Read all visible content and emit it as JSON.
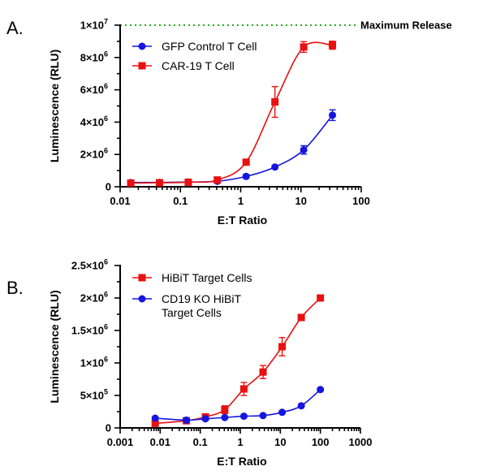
{
  "chart_data": [
    {
      "type": "scatter",
      "panel": "A.",
      "xlabel": "E:T Ratio",
      "ylabel": "Luminescence (RLU)",
      "xscale": "log",
      "xlim": [
        0.01,
        100
      ],
      "ylim": [
        0,
        10000000
      ],
      "x_ticks": [
        "0.01",
        "0.1",
        "1",
        "10",
        "100"
      ],
      "y_ticks": [
        {
          "mant": "0",
          "exp": ""
        },
        {
          "mant": "2×10",
          "exp": "6"
        },
        {
          "mant": "4×10",
          "exp": "6"
        },
        {
          "mant": "6×10",
          "exp": "6"
        },
        {
          "mant": "8×10",
          "exp": "6"
        },
        {
          "mant": "1×10",
          "exp": "7"
        }
      ],
      "reference_line": {
        "label": "Maximum Release",
        "y": 10000000,
        "color": "#22aa22",
        "style": "dotted"
      },
      "legend_position": "top-left",
      "series": [
        {
          "name": "GFP Control T Cell",
          "color": "#1515e0",
          "marker": "circle",
          "x": [
            0.015,
            0.045,
            0.135,
            0.41,
            1.23,
            3.7,
            11.1,
            33.3
          ],
          "y": [
            260000,
            270000,
            290000,
            340000,
            640000,
            1220000,
            2280000,
            4430000
          ],
          "err": [
            60000,
            60000,
            60000,
            60000,
            120000,
            70000,
            260000,
            330000
          ]
        },
        {
          "name": "CAR-19 T Cell",
          "color": "#e81010",
          "marker": "square",
          "x": [
            0.015,
            0.045,
            0.135,
            0.41,
            1.23,
            3.7,
            11.1,
            33.3
          ],
          "y": [
            230000,
            250000,
            280000,
            420000,
            1520000,
            5250000,
            8650000,
            8760000
          ],
          "err": [
            50000,
            50000,
            50000,
            60000,
            100000,
            950000,
            330000,
            250000
          ]
        }
      ]
    },
    {
      "type": "scatter",
      "panel": "B.",
      "xlabel": "E:T Ratio",
      "ylabel": "Luminescence (RLU)",
      "xscale": "log",
      "xlim": [
        0.001,
        1000
      ],
      "ylim": [
        0,
        2500000
      ],
      "x_ticks": [
        "0.001",
        "0.01",
        "0.1",
        "1",
        "10",
        "100",
        "1000"
      ],
      "y_ticks": [
        {
          "mant": "0",
          "exp": ""
        },
        {
          "mant": "5×10",
          "exp": "5"
        },
        {
          "mant": "1×10",
          "exp": "6"
        },
        {
          "mant": "1.5×10",
          "exp": "6"
        },
        {
          "mant": "2×10",
          "exp": "6"
        },
        {
          "mant": "2.5×10",
          "exp": "6"
        }
      ],
      "legend_position": "top-left",
      "series": [
        {
          "name": "HiBiT Target Cells",
          "color": "#e81010",
          "marker": "square",
          "x": [
            0.0075,
            0.045,
            0.135,
            0.41,
            1.23,
            3.7,
            11.1,
            33.3,
            100
          ],
          "y": [
            70000,
            110000,
            170000,
            280000,
            600000,
            860000,
            1250000,
            1700000,
            2000000
          ],
          "err": [
            30000,
            30000,
            30000,
            60000,
            100000,
            100000,
            140000,
            40000,
            30000
          ]
        },
        {
          "name": "CD19 KO HiBiT Target Cells",
          "label_lines": [
            "CD19 KO HiBiT",
            "Target Cells"
          ],
          "color": "#1515e0",
          "marker": "circle",
          "x": [
            0.0075,
            0.045,
            0.135,
            0.41,
            1.23,
            3.7,
            11.1,
            33.3,
            100
          ],
          "y": [
            150000,
            120000,
            140000,
            160000,
            180000,
            190000,
            240000,
            340000,
            590000
          ],
          "err": [
            10000,
            10000,
            10000,
            10000,
            10000,
            10000,
            15000,
            15000,
            20000
          ]
        }
      ]
    }
  ]
}
